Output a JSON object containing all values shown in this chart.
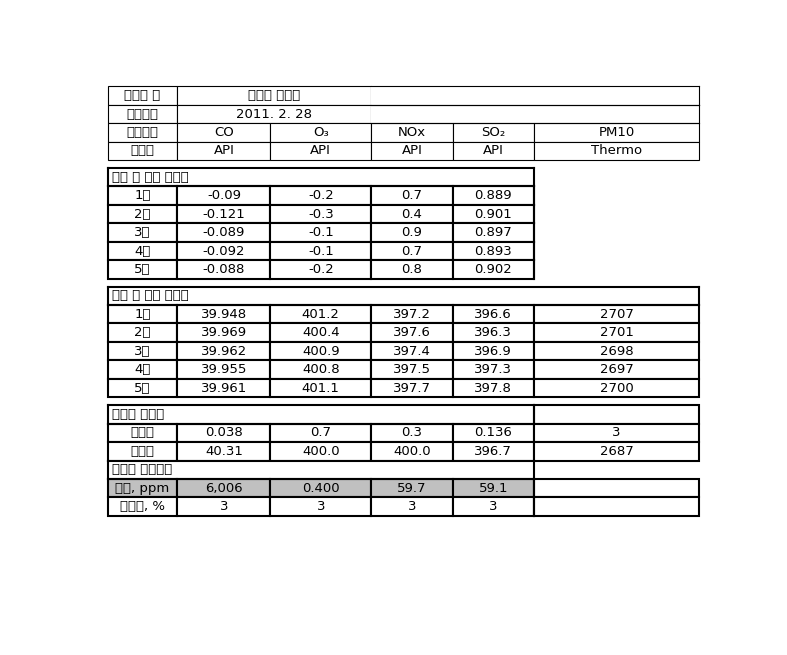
{
  "station_name": "측정소 명",
  "station_value": "전주시 팔복동",
  "date_label": "시험일자",
  "date_value": "2011. 2. 28",
  "substance_label": "측정물질",
  "maker_label": "제조사",
  "makers": [
    "API",
    "API",
    "API",
    "API",
    "Thermo"
  ],
  "zero_section_label": "교정 전 측정 제로값",
  "zero_rows": [
    [
      "1회",
      "-0.09",
      "-0.2",
      "0.7",
      "0.889",
      ""
    ],
    [
      "2회",
      "-0.121",
      "-0.3",
      "0.4",
      "0.901",
      ""
    ],
    [
      "3회",
      "-0.089",
      "-0.1",
      "0.9",
      "0.897",
      ""
    ],
    [
      "4회",
      "-0.092",
      "-0.1",
      "0.7",
      "0.893",
      ""
    ],
    [
      "5회",
      "-0.088",
      "-0.2",
      "0.8",
      "0.902",
      ""
    ]
  ],
  "span_section_label": "교정 전 측정 스팸값",
  "span_rows": [
    [
      "1회",
      "39.948",
      "401.2",
      "397.2",
      "396.6",
      "2707"
    ],
    [
      "2회",
      "39.969",
      "400.4",
      "397.6",
      "396.3",
      "2701"
    ],
    [
      "3회",
      "39.962",
      "400.9",
      "397.4",
      "396.9",
      "2698"
    ],
    [
      "4회",
      "39.955",
      "400.8",
      "397.5",
      "397.3",
      "2697"
    ],
    [
      "5회",
      "39.961",
      "401.1",
      "397.7",
      "397.8",
      "2700"
    ]
  ],
  "after_section_label": "교정후 교정값",
  "zero_val_label": "제로값",
  "zero_vals": [
    "0.038",
    "0.7",
    "0.3",
    "0.136",
    "3"
  ],
  "span_val_label": "스팸값",
  "span_vals": [
    "40.31",
    "400.0",
    "400.0",
    "396.7",
    "2687"
  ],
  "gas_section_label": "교정용 스팸가스",
  "conc_label": "농도, ppm",
  "conc_vals": [
    "6,006",
    "0.400",
    "59.7",
    "59.1",
    ""
  ],
  "uncert_label": "불확도, %",
  "uncert_vals": [
    "3",
    "3",
    "3",
    "3",
    ""
  ],
  "col_headers": [
    "CO",
    "O₃",
    "NOx",
    "SO₂",
    "PM10"
  ],
  "gray_bg": "#c0c0c0",
  "white_bg": "#ffffff",
  "font_size": 9.5
}
